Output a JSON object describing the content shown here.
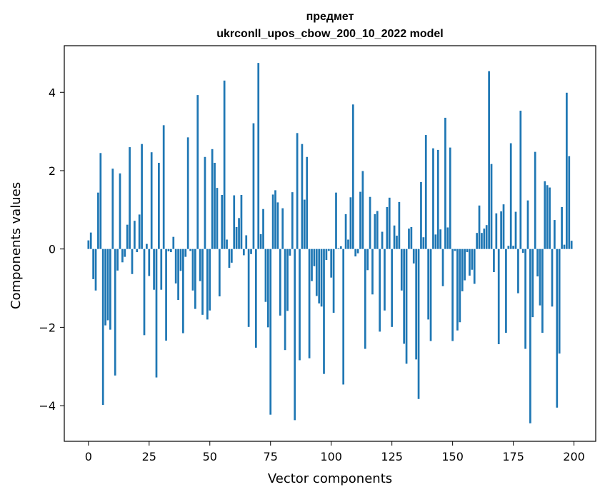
{
  "chart_data": {
    "type": "bar",
    "title_line1": "предмет",
    "title_line2": "ukrconll_upos_cbow_200_10_2022 model",
    "xlabel": "Vector components",
    "ylabel": "Components values",
    "xlim": [
      -9.95,
      208.95
    ],
    "ylim": [
      -4.91,
      5.19
    ],
    "x_ticks": [
      0,
      25,
      50,
      75,
      100,
      125,
      150,
      175,
      200
    ],
    "x_tick_labels": [
      "0",
      "25",
      "50",
      "75",
      "100",
      "125",
      "150",
      "175",
      "200"
    ],
    "y_ticks": [
      -4,
      -2,
      0,
      2,
      4
    ],
    "y_tick_labels": [
      "−4",
      "−2",
      "0",
      "2",
      "4"
    ],
    "bar_color": "#1f77b4",
    "grid": false,
    "x": [
      0,
      1,
      2,
      3,
      4,
      5,
      6,
      7,
      8,
      9,
      10,
      11,
      12,
      13,
      14,
      15,
      16,
      17,
      18,
      19,
      20,
      21,
      22,
      23,
      24,
      25,
      26,
      27,
      28,
      29,
      30,
      31,
      32,
      33,
      34,
      35,
      36,
      37,
      38,
      39,
      40,
      41,
      42,
      43,
      44,
      45,
      46,
      47,
      48,
      49,
      50,
      51,
      52,
      53,
      54,
      55,
      56,
      57,
      58,
      59,
      60,
      61,
      62,
      63,
      64,
      65,
      66,
      67,
      68,
      69,
      70,
      71,
      72,
      73,
      74,
      75,
      76,
      77,
      78,
      79,
      80,
      81,
      82,
      83,
      84,
      85,
      86,
      87,
      88,
      89,
      90,
      91,
      92,
      93,
      94,
      95,
      96,
      97,
      98,
      99,
      100,
      101,
      102,
      103,
      104,
      105,
      106,
      107,
      108,
      109,
      110,
      111,
      112,
      113,
      114,
      115,
      116,
      117,
      118,
      119,
      120,
      121,
      122,
      123,
      124,
      125,
      126,
      127,
      128,
      129,
      130,
      131,
      132,
      133,
      134,
      135,
      136,
      137,
      138,
      139,
      140,
      141,
      142,
      143,
      144,
      145,
      146,
      147,
      148,
      149,
      150,
      151,
      152,
      153,
      154,
      155,
      156,
      157,
      158,
      159,
      160,
      161,
      162,
      163,
      164,
      165,
      166,
      167,
      168,
      169,
      170,
      171,
      172,
      173,
      174,
      175,
      176,
      177,
      178,
      179,
      180,
      181,
      182,
      183,
      184,
      185,
      186,
      187,
      188,
      189,
      190,
      191,
      192,
      193,
      194,
      195,
      196,
      197,
      198,
      199
    ],
    "values": [
      0.22,
      0.42,
      -0.77,
      -1.06,
      1.44,
      2.45,
      -3.98,
      -1.95,
      -1.82,
      -2.06,
      2.05,
      -3.23,
      -0.55,
      1.93,
      -0.34,
      -0.2,
      0.62,
      2.6,
      -0.64,
      0.72,
      -0.08,
      0.88,
      2.68,
      -2.2,
      0.13,
      -0.69,
      2.47,
      -1.04,
      -3.28,
      2.2,
      -1.04,
      3.16,
      -2.34,
      -0.06,
      -0.08,
      0.31,
      -0.88,
      -1.3,
      -0.56,
      -2.15,
      -0.2,
      2.85,
      -0.05,
      -1.06,
      -1.53,
      3.93,
      -0.82,
      -1.68,
      2.35,
      -1.8,
      -1.57,
      2.55,
      2.2,
      1.56,
      -1.21,
      1.38,
      4.3,
      0.24,
      -0.48,
      -0.35,
      1.37,
      0.56,
      0.79,
      1.38,
      -0.16,
      0.35,
      -1.99,
      -0.13,
      3.21,
      -2.52,
      4.75,
      0.38,
      1.02,
      -1.35,
      -2.0,
      -4.23,
      1.39,
      1.5,
      1.19,
      -1.7,
      1.04,
      -2.58,
      -1.58,
      -0.17,
      1.45,
      -4.37,
      2.96,
      -2.84,
      2.68,
      1.26,
      2.35,
      -2.79,
      -0.82,
      -0.44,
      -1.2,
      -1.39,
      -1.47,
      -3.19,
      -0.28,
      -0.05,
      -0.73,
      -1.63,
      1.44,
      0.02,
      0.07,
      -3.46,
      0.89,
      0.24,
      1.32,
      3.69,
      -0.19,
      -0.11,
      1.46,
      1.99,
      -2.55,
      -0.54,
      1.33,
      -1.16,
      0.89,
      0.97,
      -2.11,
      0.44,
      -1.57,
      1.07,
      1.31,
      -1.99,
      0.6,
      0.34,
      1.2,
      -1.06,
      -2.42,
      -2.93,
      0.52,
      0.56,
      -0.37,
      -2.82,
      -3.83,
      1.71,
      0.3,
      2.91,
      -1.8,
      -2.35,
      2.57,
      0.37,
      2.53,
      0.5,
      -0.95,
      3.35,
      0.55,
      2.59,
      -2.35,
      -0.05,
      -2.08,
      -1.87,
      -1.08,
      -0.8,
      -0.08,
      -0.68,
      -0.53,
      -0.89,
      0.41,
      1.11,
      0.41,
      0.52,
      0.61,
      4.54,
      2.17,
      -0.59,
      0.91,
      -2.43,
      0.96,
      1.14,
      -2.14,
      0.08,
      2.7,
      0.08,
      0.95,
      -1.13,
      3.53,
      -0.1,
      -2.55,
      1.24,
      -4.45,
      -1.74,
      2.48,
      -0.7,
      -1.44,
      -2.14,
      1.73,
      1.63,
      1.57,
      -1.47,
      0.74,
      -4.05,
      -2.67,
      1.07,
      0.11,
      3.99,
      2.37,
      0.21
    ]
  }
}
